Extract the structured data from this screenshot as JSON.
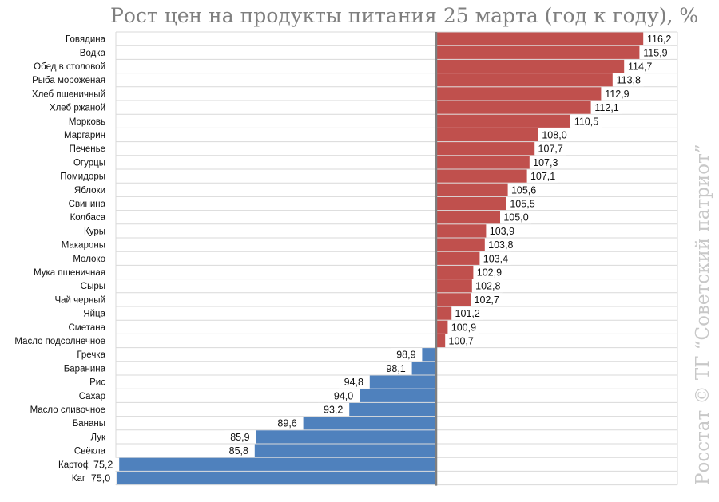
{
  "title": "Рост цен на продукты питания 25 марта (год к году), %",
  "watermark": "Росстат © ТГ “Советский патриот”",
  "colors": {
    "increase": "#c0504d",
    "decrease": "#4f81bd",
    "grid": "#d9d9d9",
    "baseline": "#7f7f7f",
    "label_bg": "#ffffff"
  },
  "chart_data": {
    "type": "bar",
    "orientation": "horizontal",
    "baseline": 100,
    "xlim": [
      74,
      117
    ],
    "grid": true,
    "legend": "none",
    "categories": [
      "Говядина",
      "Водка",
      "Обед в столовой",
      "Рыба мороженая",
      "Хлеб пшеничный",
      "Хлеб ржаной",
      "Морковь",
      "Маргарин",
      "Печенье",
      "Огурцы",
      "Помидоры",
      "Яблоки",
      "Свинина",
      "Колбаса",
      "Куры",
      "Макароны",
      "Молоко",
      "Мука пшеничная",
      "Сыры",
      "Чай черный",
      "Яйца",
      "Сметана",
      "Масло подсолнечное",
      "Гречка",
      "Баранина",
      "Рис",
      "Сахар",
      "Масло сливочное",
      "Бананы",
      "Лук",
      "Свёкла",
      "Картофель",
      "Капуста"
    ],
    "values": [
      116.2,
      115.9,
      114.7,
      113.8,
      112.9,
      112.1,
      110.5,
      108.0,
      107.7,
      107.3,
      107.1,
      105.6,
      105.5,
      105.0,
      103.9,
      103.8,
      103.4,
      102.9,
      102.8,
      102.7,
      101.2,
      100.9,
      100.7,
      98.9,
      98.1,
      94.8,
      94.0,
      93.2,
      89.6,
      85.9,
      85.8,
      75.2,
      75.0
    ],
    "value_labels": [
      "116,2",
      "115,9",
      "114,7",
      "113,8",
      "112,9",
      "112,1",
      "110,5",
      "108,0",
      "107,7",
      "107,3",
      "107,1",
      "105,6",
      "105,5",
      "105,0",
      "103,9",
      "103,8",
      "103,4",
      "102,9",
      "102,8",
      "102,7",
      "101,2",
      "100,9",
      "100,7",
      "98,9",
      "98,1",
      "94,8",
      "94,0",
      "93,2",
      "89,6",
      "85,9",
      "85,8",
      "75,2",
      "75,0"
    ]
  }
}
